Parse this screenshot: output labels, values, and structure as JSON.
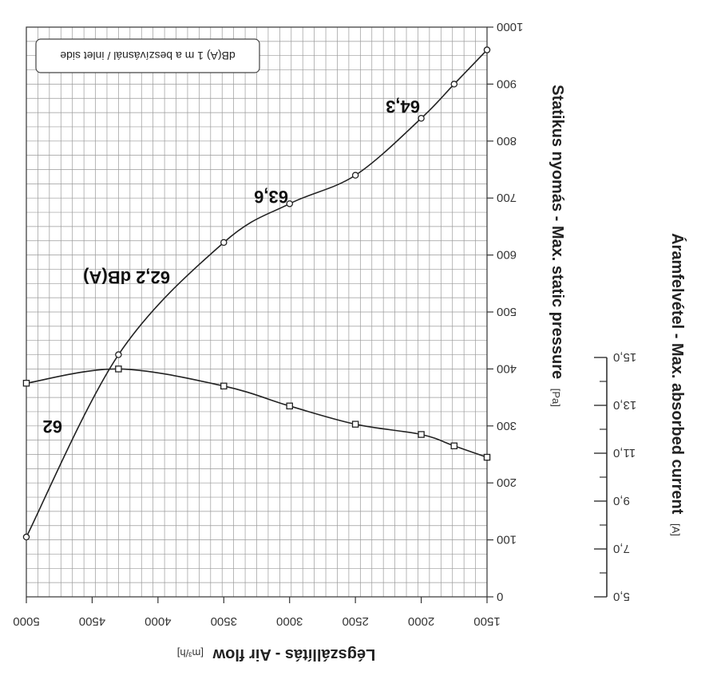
{
  "chart_data": {
    "type": "line",
    "orientation": "image rotated 180 degrees",
    "x": [
      1500,
      1750,
      2000,
      2500,
      3000,
      3500,
      4300,
      5000
    ],
    "xlabel": "Légszállítás - Air flow",
    "xunit": "[m³/h]",
    "xlim": [
      1500,
      5000
    ],
    "xticks": [
      1500,
      2000,
      2500,
      3000,
      3500,
      4000,
      4500,
      5000
    ],
    "ylabel_left": "Statikus nyomás - Max. static pressure",
    "yunit_left": "[Pa]",
    "ylim_left": [
      0,
      1000
    ],
    "yticks_left": [
      0,
      100,
      200,
      300,
      400,
      500,
      600,
      700,
      800,
      900,
      1000
    ],
    "ylabel_right": "Áramfelvétel - Max. absorbed current",
    "yunit_right": "[A]",
    "ylim_right": [
      5.0,
      15.0
    ],
    "yticks_right": [
      "5,0",
      "7,0",
      "9,0",
      "11,0",
      "13,0",
      "15,0"
    ],
    "series": [
      {
        "values": [
          960,
          900,
          840,
          740,
          690,
          622,
          425,
          105
        ]
      },
      {
        "values": [
          245,
          265,
          285,
          303,
          335,
          370,
          400,
          375
        ]
      }
    ],
    "annotations": [
      "62",
      "62,2 dB(A)",
      "63,6",
      "64,3"
    ],
    "legend": "dB(A) 1 m a beszívásnál / inlet side",
    "grid": true
  }
}
